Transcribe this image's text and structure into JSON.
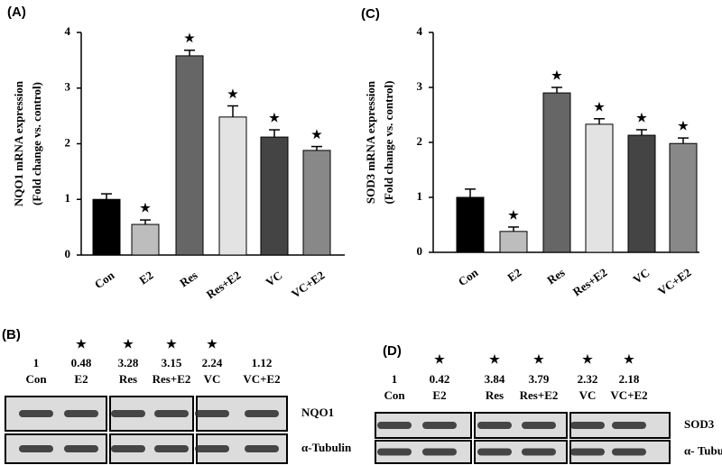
{
  "chart_data": [
    {
      "type": "bar",
      "panel_label": "(A)",
      "ylabel": [
        "NQO1 mRNA expression",
        "(Fold change vs. control)"
      ],
      "categories": [
        "Con",
        "E2",
        "Res",
        "Res+E2",
        "VC",
        "VC+E2"
      ],
      "values": [
        1.0,
        0.55,
        3.58,
        2.48,
        2.12,
        1.88
      ],
      "errors": [
        0.1,
        0.08,
        0.1,
        0.2,
        0.13,
        0.07
      ],
      "colors": [
        "#000000",
        "#bdbdbd",
        "#666666",
        "#e3e3e3",
        "#444444",
        "#888888"
      ],
      "significance": [
        null,
        "★",
        "★",
        "★",
        "★",
        "★"
      ],
      "ylim": [
        0,
        4
      ],
      "yticks": [
        0,
        1,
        2,
        3,
        4
      ]
    },
    {
      "type": "bar",
      "panel_label": "(C)",
      "ylabel": [
        "SOD3 mRNA expression",
        "(Fold change vs. control)"
      ],
      "categories": [
        "Con",
        "E2",
        "Res",
        "Res+E2",
        "VC",
        "VC+E2"
      ],
      "values": [
        1.0,
        0.38,
        2.9,
        2.33,
        2.13,
        1.98
      ],
      "errors": [
        0.15,
        0.08,
        0.1,
        0.1,
        0.1,
        0.1
      ],
      "colors": [
        "#000000",
        "#bdbdbd",
        "#666666",
        "#e3e3e3",
        "#444444",
        "#888888"
      ],
      "significance": [
        null,
        "★",
        "★",
        "★",
        "★",
        "★"
      ],
      "ylim": [
        0,
        4
      ],
      "yticks": [
        0,
        1,
        2,
        3,
        4
      ]
    }
  ],
  "blots": [
    {
      "panel_label": "(B)",
      "significance": [
        null,
        "★",
        "★",
        "★",
        "★",
        null
      ],
      "ratios": [
        1,
        0.48,
        3.28,
        3.15,
        2.24,
        1.12
      ],
      "lanes": [
        "Con",
        "E2",
        "Res",
        "Res+E2",
        "VC",
        "VC+E2"
      ],
      "proteins": [
        "NQO1",
        "α-Tubulin"
      ]
    },
    {
      "panel_label": "(D)",
      "significance": [
        null,
        "★",
        "★",
        "★",
        "★",
        "★"
      ],
      "ratios": [
        1,
        0.42,
        3.84,
        3.79,
        2.32,
        2.18
      ],
      "lanes": [
        "Con",
        "E2",
        "Res",
        "Res+E2",
        "VC",
        "VC+E2"
      ],
      "proteins": [
        "SOD3",
        "α- Tubulin"
      ]
    }
  ]
}
